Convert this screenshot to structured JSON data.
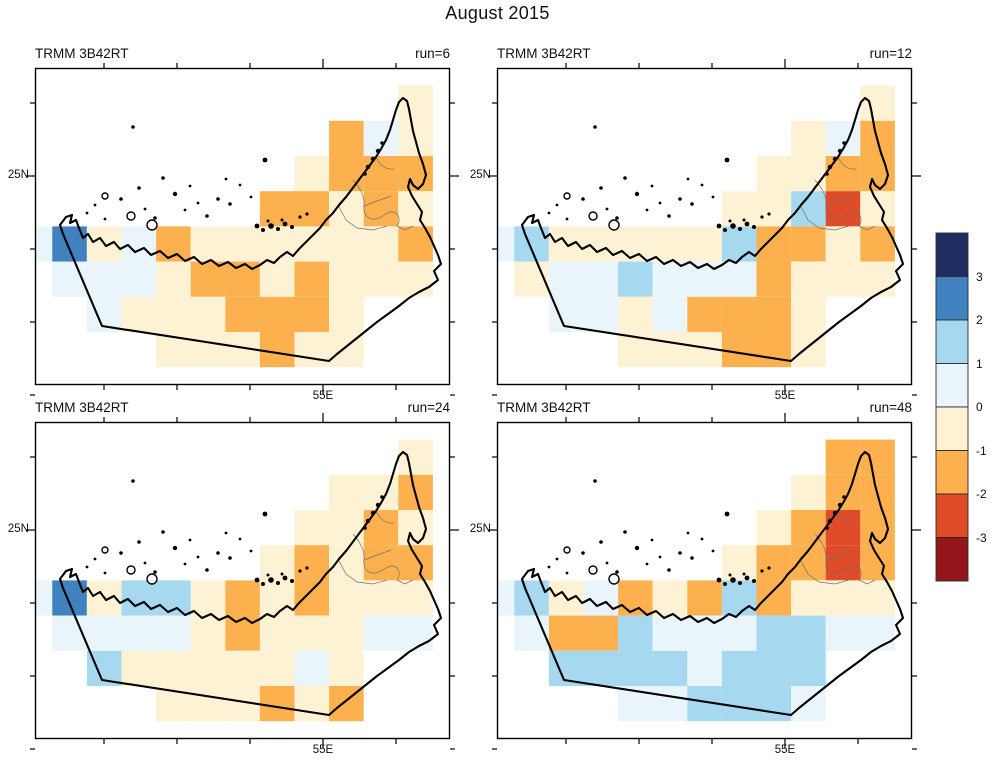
{
  "title": "August 2015",
  "value_colors": {
    "n": "#1f2d62",
    "b": "#4181c0",
    "l": "#a6d8f0",
    "p": "#e9f4fb",
    "y": "#fdf3d4",
    "o": "#fcb04e",
    "r": "#e04b2a",
    "d": "#92161a"
  },
  "colorbar": {
    "colors_top_to_bottom": [
      "#1f2d62",
      "#4181c0",
      "#a6d8f0",
      "#e9f4fb",
      "#fdf3d4",
      "#fcb04e",
      "#e04b2a",
      "#92161a"
    ],
    "tick_labels": [
      "3",
      "2",
      "1",
      "0",
      "-1",
      "-2",
      "-3"
    ]
  },
  "chart_data": {
    "type": "heatmap",
    "title": "August 2015",
    "legend_position": "right",
    "colorbar_ticks": [
      "3",
      "2",
      "1",
      "0",
      "-1",
      "-2",
      "-3"
    ],
    "cell_value_buckets": {
      "n": "above 3",
      "b": "2 to 3",
      "l": "1 to 2",
      "p": "0 to 1",
      "y": "-1 to 0",
      "o": "-2 to -1",
      "r": "-3 to -2",
      "d": "below -3"
    },
    "grid_note": "rows top-to-bottom, 12 columns left-to-right, '.' = no data (sea/outside mask)",
    "panels": [
      {
        "label": "TRMM 3B42RT",
        "run": "run=6",
        "xtick_label": "55E",
        "ytick_label": "25N",
        "grid": [
          "............",
          "...........y",
          ".........opy",
          "........yooo",
          ".......ooyoy",
          "pbypoyyyyyyo",
          ".pppyooyoyyy",
          "..pyyyoooy..",
          "....yyyoyy.."
        ]
      },
      {
        "label": "TRMM 3B42RT",
        "run": "run=12",
        "xtick_label": "55E",
        "ytick_label": "25N",
        "grid": [
          "............",
          "...........y",
          ".........ypo",
          "........yyoo",
          ".......yylry",
          "plyyyyylooyo",
          ".ypplpppoyyy",
          "..ppypoooy..",
          "....yyyooy.."
        ]
      },
      {
        "label": "TRMM 3B42RT",
        "run": "run=24",
        "xtick_label": "55E",
        "ytick_label": "25N",
        "grid": [
          "............",
          "...........y",
          ".........yyo",
          "........yyoy",
          ".......yoyoo",
          "pbyllyoyoyyy",
          ".ppppyoyyypp",
          "..lyyyyypy..",
          "....yyyoyo.."
        ]
      },
      {
        "label": "TRMM 3B42RT",
        "run": "run=48",
        "xtick_label": "55E",
        "ytick_label": "25N",
        "grid": [
          "............",
          "..........oo",
          ".........yoo",
          "........yoro",
          ".......yooro",
          "plypoyoloyyy",
          ".poolpppllpp",
          "..llllplll..",
          "....pplllp.."
        ]
      }
    ]
  }
}
